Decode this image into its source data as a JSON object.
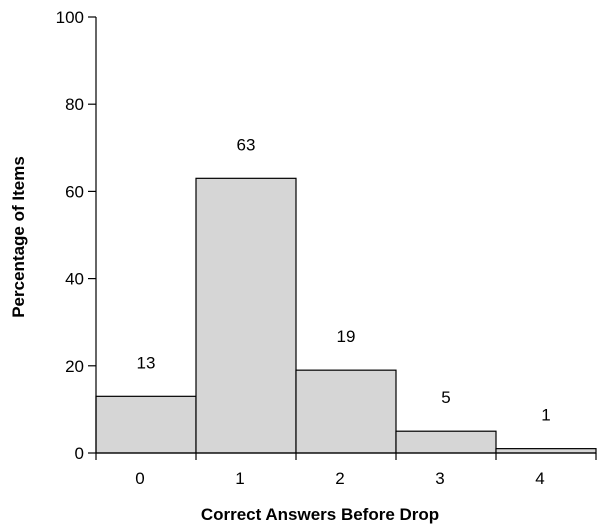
{
  "chart_data": {
    "type": "bar",
    "categories": [
      "0",
      "1",
      "2",
      "3",
      "4"
    ],
    "values": [
      13,
      63,
      19,
      5,
      1
    ],
    "data_labels": [
      "13",
      "63",
      "19",
      "5",
      "1"
    ],
    "title": "",
    "xlabel": "Correct Answers Before Drop",
    "ylabel": "Percentage of Items",
    "ylim": [
      0,
      100
    ],
    "yticks": [
      0,
      20,
      40,
      60,
      80,
      100
    ],
    "grid": false,
    "legend": "none",
    "bar_color": "#d6d6d6",
    "edge_color": "#000000"
  }
}
